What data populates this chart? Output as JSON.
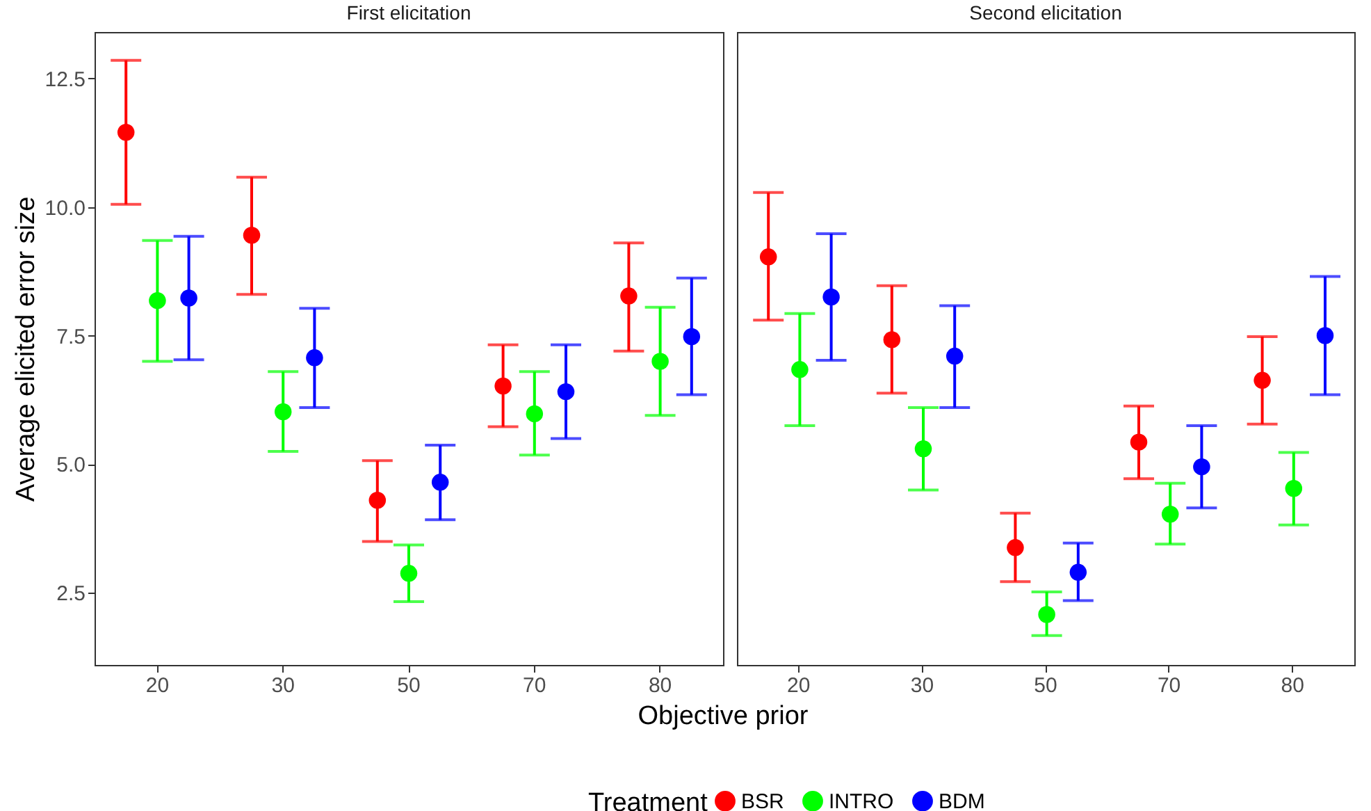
{
  "chart_data": [
    {
      "type": "scatter",
      "title": "First elicitation",
      "xlabel": "Objective prior",
      "ylabel": "Average elicited error size",
      "legend_title": "Treatment",
      "legend": "bottom",
      "marker": "circle",
      "grid": false,
      "categories": [
        "20",
        "30",
        "50",
        "70",
        "80"
      ],
      "ylim": [
        1.1,
        13.4
      ],
      "yticks": [
        {
          "value": 2.5,
          "label": "2.5"
        },
        {
          "value": 5,
          "label": "5.0"
        },
        {
          "value": 7.5,
          "label": "7.5"
        },
        {
          "value": 10,
          "label": "10.0"
        },
        {
          "value": 12.5,
          "label": "12.5"
        }
      ],
      "series": [
        {
          "name": "BSR",
          "color": "#ff0000",
          "values": [
            11.45,
            9.45,
            4.3,
            6.52,
            8.27
          ],
          "errors": [
            [
              10.05,
              12.85
            ],
            [
              8.3,
              10.58
            ],
            [
              3.5,
              5.07
            ],
            [
              5.73,
              7.32
            ],
            [
              7.2,
              9.3
            ]
          ]
        },
        {
          "name": "INTRO",
          "color": "#00ff00",
          "values": [
            8.18,
            6.02,
            2.88,
            5.98,
            7.0
          ],
          "errors": [
            [
              7.0,
              9.35
            ],
            [
              5.25,
              6.8
            ],
            [
              2.33,
              3.43
            ],
            [
              5.18,
              6.8
            ],
            [
              5.95,
              8.05
            ]
          ]
        },
        {
          "name": "BDM",
          "color": "#0000ff",
          "values": [
            8.23,
            7.07,
            4.65,
            6.41,
            7.48
          ],
          "errors": [
            [
              7.03,
              9.43
            ],
            [
              6.1,
              8.03
            ],
            [
              3.92,
              5.37
            ],
            [
              5.5,
              7.32
            ],
            [
              6.35,
              8.62
            ]
          ]
        }
      ]
    },
    {
      "type": "scatter",
      "title": "Second elicitation",
      "marker": "circle",
      "grid": false,
      "tick_labels": "x",
      "categories": [
        "20",
        "30",
        "50",
        "70",
        "80"
      ],
      "ylim": [
        1.1,
        13.4
      ],
      "series": [
        {
          "name": "BSR",
          "color": "#ff0000",
          "values": [
            9.03,
            7.42,
            3.38,
            5.43,
            6.63
          ],
          "errors": [
            [
              7.8,
              10.28
            ],
            [
              6.38,
              8.47
            ],
            [
              2.72,
              4.05
            ],
            [
              4.72,
              6.13
            ],
            [
              5.78,
              7.48
            ]
          ]
        },
        {
          "name": "INTRO",
          "color": "#00ff00",
          "values": [
            6.84,
            5.3,
            2.08,
            4.03,
            4.53
          ],
          "errors": [
            [
              5.75,
              7.93
            ],
            [
              4.5,
              6.1
            ],
            [
              1.67,
              2.52
            ],
            [
              3.45,
              4.63
            ],
            [
              3.82,
              5.23
            ]
          ]
        },
        {
          "name": "BDM",
          "color": "#0000ff",
          "values": [
            8.25,
            7.1,
            2.9,
            4.95,
            7.5
          ],
          "errors": [
            [
              7.02,
              9.48
            ],
            [
              6.1,
              8.08
            ],
            [
              2.35,
              3.47
            ],
            [
              4.15,
              5.75
            ],
            [
              6.35,
              8.65
            ]
          ]
        }
      ]
    }
  ]
}
